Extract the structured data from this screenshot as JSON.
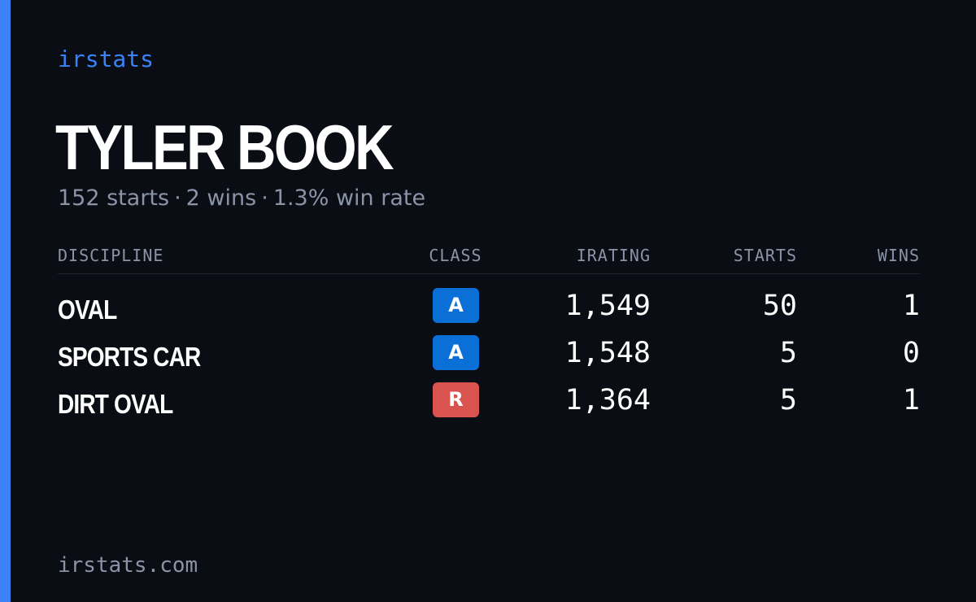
{
  "brand": "irstats",
  "driver": {
    "name": "TYLER BOOK",
    "starts_text": "152 starts",
    "wins_text": "2 wins",
    "win_rate_text": "1.3% win rate",
    "separator": "·"
  },
  "table": {
    "headers": {
      "discipline": "DISCIPLINE",
      "class": "CLASS",
      "irating": "IRATING",
      "starts": "STARTS",
      "wins": "WINS"
    },
    "rows": [
      {
        "discipline": "OVAL",
        "class": "A",
        "class_color": "#0a6fd6",
        "irating": "1,549",
        "starts": "50",
        "wins": "1"
      },
      {
        "discipline": "SPORTS CAR",
        "class": "A",
        "class_color": "#0a6fd6",
        "irating": "1,548",
        "starts": "5",
        "wins": "0"
      },
      {
        "discipline": "DIRT OVAL",
        "class": "R",
        "class_color": "#d9534f",
        "irating": "1,364",
        "starts": "5",
        "wins": "1"
      }
    ]
  },
  "footer": "irstats.com",
  "colors": {
    "accent": "#3b82f6",
    "background": "#0a0d14",
    "muted_text": "#8b93a7"
  }
}
